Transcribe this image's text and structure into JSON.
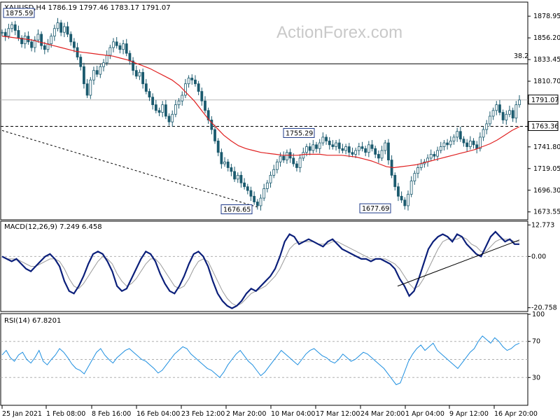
{
  "chart_data": [
    {
      "type": "candlestick",
      "symbol_header": "XAUUSD,H4  1786.19 1797.46 1783.17 1791.07",
      "watermark": "ActionForex.com",
      "ylim": [
        1666,
        1893
      ],
      "y_ticks": [
        1878.95,
        1856.2,
        1833.45,
        1810.7,
        1741.8,
        1719.05,
        1696.3,
        1673.55
      ],
      "price_tags": [
        {
          "text": "1791.07",
          "value": 1791.07,
          "style": "current"
        },
        {
          "text": "1763.36",
          "value": 1763.36,
          "style": "level"
        }
      ],
      "fib_label": "38.2",
      "fib_level": 1829.0,
      "hline_dashed": 1763.36,
      "trendline_dashed": {
        "from": {
          "x": "25 Jan 2021",
          "y": 1759
        },
        "to": {
          "x": "2 Mar 2021",
          "y": 1676.65
        }
      },
      "annotations": [
        {
          "text": "1875.59",
          "x": "25 Jan 2021",
          "y": 1875.59
        },
        {
          "text": "1755.29",
          "x": "17 Mar 2021",
          "y": 1755.29
        },
        {
          "text": "1676.65",
          "x": "8 Mar 2021",
          "y": 1676.65
        },
        {
          "text": "1677.69",
          "x": "31 Mar 2021",
          "y": 1677.69
        }
      ],
      "x_tick_labels": [
        "25 Jan 2021",
        "1 Feb 08:00",
        "8 Feb 16:00",
        "16 Feb 04:00",
        "23 Feb 12:00",
        "2 Mar 20:00",
        "10 Mar 04:00",
        "17 Mar 12:00",
        "24 Mar 20:00",
        "1 Apr 04:00",
        "9 Apr 12:00",
        "16 Apr 20:00"
      ],
      "series_close_path": [
        1862,
        1858,
        1866,
        1870,
        1864,
        1856,
        1850,
        1858,
        1852,
        1846,
        1854,
        1860,
        1848,
        1844,
        1850,
        1858,
        1866,
        1872,
        1862,
        1868,
        1860,
        1852,
        1846,
        1836,
        1826,
        1808,
        1796,
        1812,
        1822,
        1818,
        1826,
        1830,
        1838,
        1846,
        1852,
        1848,
        1844,
        1850,
        1840,
        1832,
        1822,
        1816,
        1820,
        1808,
        1800,
        1794,
        1786,
        1780,
        1778,
        1786,
        1774,
        1768,
        1776,
        1786,
        1790,
        1796,
        1808,
        1814,
        1812,
        1808,
        1800,
        1790,
        1780,
        1770,
        1760,
        1748,
        1736,
        1724,
        1726,
        1720,
        1716,
        1708,
        1712,
        1704,
        1700,
        1696,
        1690,
        1684,
        1680,
        1688,
        1698,
        1704,
        1712,
        1718,
        1726,
        1732,
        1728,
        1736,
        1730,
        1724,
        1720,
        1730,
        1736,
        1742,
        1738,
        1744,
        1740,
        1746,
        1752,
        1748,
        1744,
        1742,
        1746,
        1740,
        1738,
        1742,
        1736,
        1734,
        1738,
        1742,
        1740,
        1736,
        1744,
        1740,
        1734,
        1730,
        1738,
        1746,
        1728,
        1712,
        1700,
        1690,
        1686,
        1680,
        1692,
        1706,
        1714,
        1720,
        1724,
        1726,
        1730,
        1734,
        1732,
        1738,
        1742,
        1746,
        1744,
        1748,
        1752,
        1758,
        1750,
        1746,
        1742,
        1748,
        1744,
        1740,
        1752,
        1760,
        1766,
        1774,
        1780,
        1786,
        1778,
        1770,
        1776,
        1780,
        1772,
        1786,
        1791
      ],
      "ma_path": [
        1858,
        1857,
        1856,
        1855,
        1854,
        1852,
        1850,
        1848,
        1846,
        1844,
        1842,
        1841,
        1840,
        1839,
        1838,
        1837,
        1835,
        1833,
        1830,
        1827,
        1824,
        1820,
        1816,
        1812,
        1806,
        1798,
        1790,
        1780,
        1770,
        1762,
        1754,
        1748,
        1743,
        1740,
        1738,
        1736,
        1735,
        1734,
        1733,
        1733,
        1733,
        1734,
        1734,
        1734,
        1733,
        1733,
        1733,
        1732,
        1731,
        1729,
        1727,
        1724,
        1721,
        1720,
        1721,
        1722,
        1723,
        1725,
        1727,
        1729,
        1731,
        1733,
        1735,
        1737,
        1739,
        1742,
        1745,
        1749,
        1754,
        1759,
        1763
      ],
      "ma_color": "#e02020",
      "candle_color": "#1b5a6e"
    },
    {
      "type": "line",
      "title": "MACD(12,26,9) 7.249 6.458",
      "ylim": [
        -22,
        14
      ],
      "y_ticks": [
        12.773,
        0.0,
        -20.758
      ],
      "series": [
        {
          "name": "MACD",
          "color": "#0b1f7a",
          "values": [
            0,
            -1,
            -2,
            -1,
            -3,
            -5,
            -6,
            -4,
            -2,
            0,
            1,
            -1,
            -4,
            -10,
            -14,
            -15,
            -12,
            -8,
            -3,
            1,
            2,
            1,
            -2,
            -6,
            -12,
            -14,
            -13,
            -9,
            -5,
            -1,
            2,
            1,
            -2,
            -7,
            -11,
            -14,
            -15,
            -12,
            -8,
            -3,
            1,
            2,
            0,
            -4,
            -10,
            -15,
            -18,
            -20,
            -21,
            -20,
            -18,
            -15,
            -13,
            -14,
            -12,
            -10,
            -8,
            -5,
            0,
            6,
            9,
            8,
            5,
            6,
            7,
            6,
            5,
            4,
            6,
            7,
            5,
            3,
            2,
            1,
            0,
            -1,
            -1,
            -2,
            -1,
            -1,
            -2,
            -3,
            -5,
            -9,
            -12,
            -16,
            -14,
            -9,
            -3,
            3,
            6,
            8,
            9,
            8,
            6,
            9,
            8,
            5,
            3,
            1,
            0,
            4,
            8,
            10,
            8,
            6,
            7,
            5,
            5
          ]
        },
        {
          "name": "Signal",
          "color": "#9a9a9a",
          "values": [
            0,
            -1,
            -1,
            -1,
            -2,
            -3,
            -4,
            -4,
            -3,
            -2,
            -1,
            -1,
            -2,
            -5,
            -9,
            -12,
            -13,
            -11,
            -8,
            -5,
            -2,
            0,
            -1,
            -3,
            -7,
            -10,
            -12,
            -11,
            -9,
            -6,
            -3,
            -1,
            -1,
            -3,
            -6,
            -9,
            -12,
            -13,
            -12,
            -9,
            -5,
            -2,
            -1,
            -2,
            -6,
            -10,
            -14,
            -17,
            -19,
            -20,
            -19,
            -17,
            -15,
            -14,
            -13,
            -12,
            -10,
            -8,
            -5,
            -1,
            3,
            5,
            6,
            6,
            6,
            6,
            5,
            5,
            5,
            6,
            6,
            5,
            4,
            3,
            2,
            1,
            0,
            -1,
            -1,
            -1,
            -1,
            -2,
            -3,
            -5,
            -8,
            -11,
            -13,
            -12,
            -9,
            -5,
            -1,
            3,
            6,
            7,
            7,
            7,
            8,
            7,
            5,
            4,
            2,
            2,
            4,
            6,
            7,
            7,
            7,
            6,
            6
          ]
        }
      ],
      "trendline_solid": {
        "from": {
          "x": "24 Mar 2021",
          "y": -12
        },
        "to": {
          "x": "16 Apr 2021",
          "y": 7.25
        }
      }
    },
    {
      "type": "line",
      "title": "RSI(14) 67.8201",
      "ylim": [
        0,
        100
      ],
      "y_ticks": [
        100,
        70,
        30
      ],
      "levels": [
        70,
        50,
        30
      ],
      "series": [
        {
          "name": "RSI",
          "color": "#1e8fe0",
          "values": [
            55,
            60,
            52,
            48,
            55,
            58,
            50,
            46,
            52,
            60,
            48,
            44,
            50,
            55,
            62,
            58,
            52,
            45,
            40,
            38,
            34,
            42,
            50,
            58,
            62,
            55,
            50,
            46,
            52,
            56,
            60,
            62,
            58,
            54,
            50,
            48,
            44,
            40,
            35,
            38,
            44,
            50,
            56,
            60,
            64,
            62,
            56,
            52,
            48,
            44,
            40,
            38,
            34,
            30,
            36,
            44,
            50,
            56,
            60,
            54,
            48,
            44,
            38,
            32,
            36,
            42,
            48,
            54,
            60,
            56,
            52,
            48,
            44,
            50,
            56,
            60,
            62,
            58,
            54,
            52,
            48,
            46,
            50,
            56,
            52,
            48,
            50,
            54,
            58,
            56,
            52,
            48,
            44,
            40,
            34,
            28,
            22,
            24,
            36,
            48,
            56,
            62,
            66,
            60,
            64,
            68,
            60,
            56,
            52,
            48,
            44,
            40,
            46,
            52,
            58,
            62,
            70,
            76,
            72,
            68,
            74,
            70,
            64,
            60,
            62,
            66,
            68
          ]
        }
      ]
    }
  ]
}
